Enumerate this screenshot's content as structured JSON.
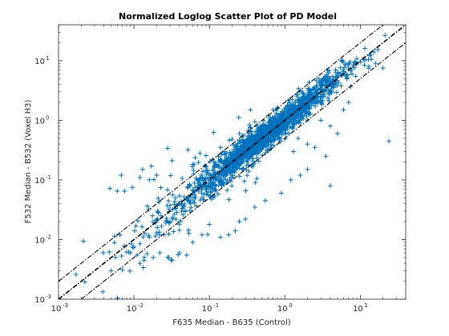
{
  "colors": {
    "points": "#0072BD",
    "lines": "#000000",
    "axes": "#262626"
  },
  "chart_data": {
    "type": "scatter",
    "title": "Normalized Loglog Scatter Plot of PD Model",
    "xlabel": "F635 Median - B635 (Control)",
    "ylabel": "F532 Median - B532 (Voxel H3)",
    "xscale": "log",
    "yscale": "log",
    "xlim": [
      0.001,
      40
    ],
    "ylim": [
      0.001,
      40
    ],
    "xticks": [
      {
        "value": 0.001,
        "base": "10",
        "exp": "-3"
      },
      {
        "value": 0.01,
        "base": "10",
        "exp": "-2"
      },
      {
        "value": 0.1,
        "base": "10",
        "exp": "-1"
      },
      {
        "value": 1,
        "base": "10",
        "exp": "0"
      },
      {
        "value": 10,
        "base": "10",
        "exp": "1"
      }
    ],
    "yticks": [
      {
        "value": 0.001,
        "base": "10",
        "exp": "-3"
      },
      {
        "value": 0.01,
        "base": "10",
        "exp": "-2"
      },
      {
        "value": 0.1,
        "base": "10",
        "exp": "-1"
      },
      {
        "value": 1,
        "base": "10",
        "exp": "0"
      },
      {
        "value": 10,
        "base": "10",
        "exp": "1"
      }
    ],
    "marker": "+",
    "grid": false,
    "reference_lines": [
      {
        "style": "dash-dot",
        "fold": 1,
        "relation": "y = x"
      },
      {
        "style": "dash-dot",
        "fold": 2,
        "relation": "y = 2x"
      },
      {
        "style": "dash-dot",
        "fold": 0.5,
        "relation": "y = x/2"
      }
    ],
    "points": [
      [
        0.0048,
        0.072
      ],
      [
        0.006,
        0.065
      ],
      [
        0.0068,
        0.12
      ],
      [
        0.0075,
        0.065
      ],
      [
        0.0095,
        0.075
      ],
      [
        0.012,
        0.11
      ],
      [
        0.013,
        0.15
      ],
      [
        0.016,
        0.1
      ],
      [
        0.017,
        0.17
      ],
      [
        0.02,
        0.12
      ],
      [
        0.028,
        0.34
      ],
      [
        0.032,
        0.21
      ],
      [
        0.052,
        0.32
      ],
      [
        0.06,
        0.18
      ],
      [
        0.075,
        0.28
      ],
      [
        0.11,
        0.22
      ],
      [
        0.14,
        0.35
      ],
      [
        0.2,
        0.48
      ],
      [
        0.3,
        0.25
      ],
      [
        0.25,
        0.6
      ],
      [
        0.4,
        0.95
      ],
      [
        0.35,
        1.5
      ],
      [
        0.4,
        0.45
      ],
      [
        0.5,
        0.35
      ],
      [
        0.28,
        0.55
      ],
      [
        0.6,
        1.2
      ],
      [
        0.7,
        1.5
      ],
      [
        0.8,
        0.9
      ],
      [
        0.9,
        1.1
      ],
      [
        1.0,
        1.3
      ],
      [
        1.2,
        1.4
      ],
      [
        1.5,
        2.2
      ],
      [
        1.8,
        2.5
      ],
      [
        2.2,
        2.8
      ],
      [
        2.5,
        3.5
      ],
      [
        3.0,
        4.2
      ],
      [
        3.5,
        4.5
      ],
      [
        4.0,
        5.0
      ],
      [
        4.5,
        4.8
      ],
      [
        5.0,
        5.5
      ],
      [
        5.5,
        6.0
      ],
      [
        6.0,
        7.0
      ],
      [
        7.0,
        7.5
      ],
      [
        8.0,
        8.5
      ],
      [
        9.0,
        8.8
      ],
      [
        10.0,
        9.5
      ],
      [
        11.0,
        10.5
      ],
      [
        13.0,
        8.0
      ],
      [
        16.0,
        9.0
      ],
      [
        20.0,
        7.5
      ],
      [
        24.0,
        0.45
      ],
      [
        6.0,
        1.5
      ],
      [
        7.0,
        2.0
      ],
      [
        5.0,
        0.6
      ],
      [
        4.0,
        0.8
      ],
      [
        3.0,
        1.0
      ],
      [
        2.5,
        0.35
      ],
      [
        2.0,
        0.4
      ],
      [
        1.5,
        0.5
      ],
      [
        1.3,
        0.3
      ],
      [
        3.5,
        0.25
      ],
      [
        2.0,
        0.15
      ],
      [
        1.6,
        0.12
      ],
      [
        1.2,
        0.1
      ],
      [
        4.0,
        0.08
      ],
      [
        0.9,
        0.06
      ],
      [
        0.55,
        0.045
      ],
      [
        0.4,
        0.035
      ],
      [
        0.3,
        0.022
      ],
      [
        0.25,
        0.02
      ],
      [
        0.22,
        0.014
      ],
      [
        0.18,
        0.012
      ],
      [
        0.14,
        0.011
      ],
      [
        0.1,
        0.018
      ],
      [
        0.08,
        0.012
      ],
      [
        0.06,
        0.009
      ],
      [
        0.05,
        0.0055
      ],
      [
        0.04,
        0.006
      ],
      [
        0.032,
        0.0045
      ],
      [
        0.028,
        0.005
      ],
      [
        0.022,
        0.006
      ],
      [
        0.018,
        0.005
      ],
      [
        0.015,
        0.0058
      ],
      [
        0.012,
        0.004
      ],
      [
        0.011,
        0.0055
      ],
      [
        0.01,
        0.0075
      ],
      [
        0.009,
        0.006
      ],
      [
        0.012,
        0.0085
      ],
      [
        0.016,
        0.011
      ],
      [
        0.02,
        0.013
      ],
      [
        0.025,
        0.012
      ],
      [
        0.03,
        0.02
      ],
      [
        0.036,
        0.022
      ],
      [
        0.045,
        0.035
      ],
      [
        0.055,
        0.042
      ],
      [
        0.065,
        0.05
      ],
      [
        0.08,
        0.07
      ],
      [
        0.1,
        0.085
      ],
      [
        0.12,
        0.1
      ],
      [
        0.15,
        0.13
      ],
      [
        0.18,
        0.16
      ],
      [
        0.22,
        0.2
      ],
      [
        0.27,
        0.25
      ],
      [
        0.33,
        0.3
      ],
      [
        0.4,
        0.38
      ],
      [
        0.48,
        0.45
      ],
      [
        0.58,
        0.55
      ],
      [
        0.7,
        0.68
      ],
      [
        0.85,
        0.8
      ],
      [
        1.0,
        0.95
      ]
    ]
  }
}
